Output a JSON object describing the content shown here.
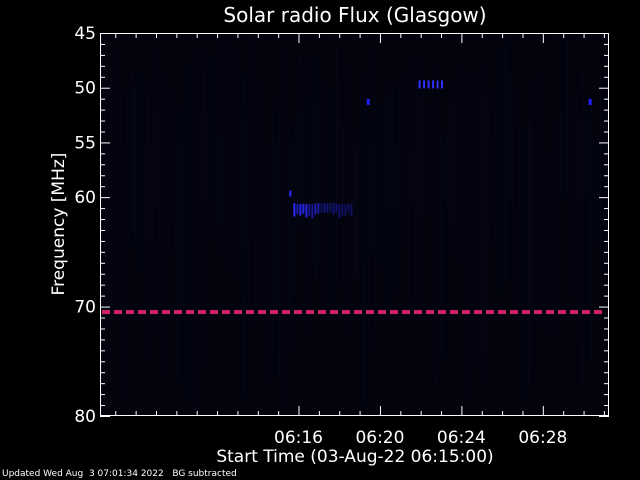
{
  "chart_data": {
    "type": "heatmap",
    "title": "Solar radio Flux (Glasgow)",
    "xlabel": "Start Time (03-Aug-22 06:15:00)",
    "ylabel": "Frequency [MHz]",
    "xlim_minutes": [
      6.25,
      31.25
    ],
    "ylim": [
      45,
      80
    ],
    "x_ticks": [
      {
        "value": 16,
        "label": "06:16"
      },
      {
        "value": 20,
        "label": "06:20"
      },
      {
        "value": 24,
        "label": "06:24"
      },
      {
        "value": 28,
        "label": "06:28"
      }
    ],
    "y_ticks": [
      {
        "value": 45,
        "label": "45"
      },
      {
        "value": 50,
        "label": "50"
      },
      {
        "value": 55,
        "label": "55"
      },
      {
        "value": 60,
        "label": "60"
      },
      {
        "value": 70,
        "label": "70"
      },
      {
        "value": 80,
        "label": "80"
      }
    ],
    "emission_features": [
      {
        "kind": "interference-band",
        "frequency": 70.5,
        "color": "#d0206a"
      },
      {
        "kind": "blob",
        "frequency_range": [
          60.5,
          61.8
        ],
        "time_range": [
          15.75,
          18.6
        ],
        "color": "#2a2aff"
      },
      {
        "kind": "dashes",
        "frequency": 49.7,
        "time_range": [
          21.9,
          23.2
        ],
        "color": "#3030ff"
      },
      {
        "kind": "spot",
        "frequency": 51.3,
        "time": 19.4,
        "color": "#2020ff"
      },
      {
        "kind": "spot",
        "frequency": 51.3,
        "time": 30.3,
        "color": "#2020ff"
      }
    ],
    "colors": {
      "background": "#000000",
      "plot_background": "#03030d",
      "axis": "#ffffff"
    }
  },
  "footer": {
    "updated": "Updated Wed Aug  3 07:01:34 2022",
    "note": "BG subtracted"
  }
}
